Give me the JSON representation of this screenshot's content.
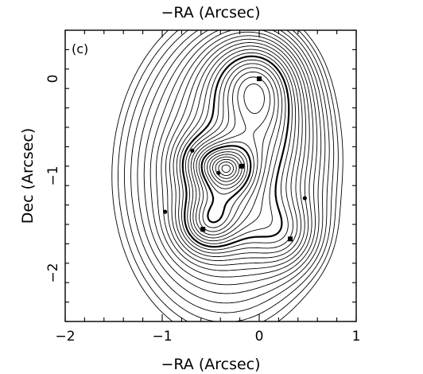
{
  "chart_data": {
    "type": "contour",
    "title": "",
    "top_label": "−RA (Arcsec)",
    "xlabel": "−RA (Arcsec)",
    "ylabel": "Dec (Arcsec)",
    "panel_label": "(c)",
    "xlim": [
      -2,
      1
    ],
    "ylim": [
      -2.5,
      0.5
    ],
    "x_ticks": [
      -2,
      -1,
      0,
      1
    ],
    "x_tick_labels": [
      "−2",
      "−1",
      "0",
      "1"
    ],
    "y_ticks": [
      0,
      -1,
      -2
    ],
    "y_tick_labels": [
      "0",
      "−1",
      "−2"
    ],
    "images": [
      {
        "x": 0.0,
        "y": 0.0
      },
      {
        "x": -0.58,
        "y": -1.55
      },
      {
        "x": 0.32,
        "y": -1.65
      },
      {
        "x": -0.18,
        "y": -0.9
      }
    ],
    "critical_points": [
      {
        "x": -0.97,
        "y": -1.37
      },
      {
        "x": -0.69,
        "y": -0.74
      },
      {
        "x": -0.42,
        "y": -0.97
      },
      {
        "x": 0.47,
        "y": -1.23
      }
    ]
  }
}
